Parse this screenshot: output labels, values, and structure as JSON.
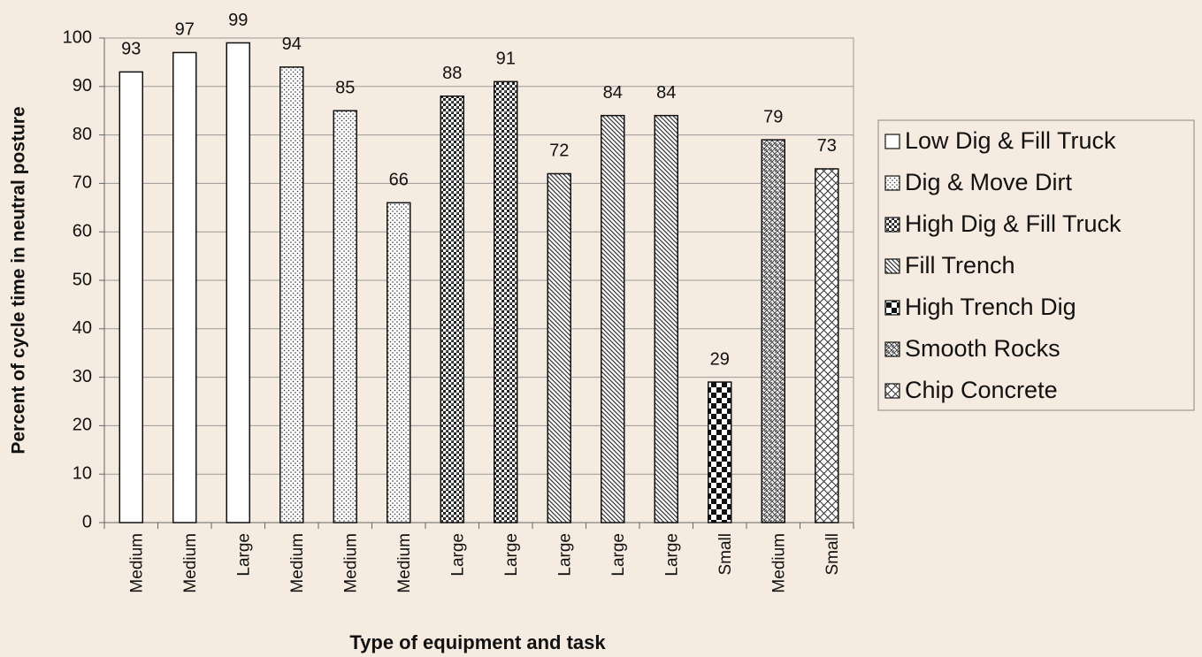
{
  "chart_data": {
    "type": "bar",
    "y_label": "Percent of cycle time in neutral posture",
    "x_label": "Type of equipment and task",
    "categories": [
      "Medium",
      "Medium",
      "Large",
      "Medium",
      "Medium",
      "Medium",
      "Large",
      "Large",
      "Large",
      "Large",
      "Large",
      "Small",
      "Medium",
      "Small"
    ],
    "series": [
      {
        "name": "Low Dig & Fill Truck",
        "pattern": "none",
        "values": [
          93,
          97,
          99,
          null,
          null,
          null,
          null,
          null,
          null,
          null,
          null,
          null,
          null,
          null
        ]
      },
      {
        "name": "Dig & Move Dirt",
        "pattern": "dots",
        "values": [
          null,
          null,
          null,
          94,
          85,
          66,
          null,
          null,
          null,
          null,
          null,
          null,
          null,
          null
        ]
      },
      {
        "name": "High Dig & Fill Truck",
        "pattern": "checks",
        "values": [
          null,
          null,
          null,
          null,
          null,
          null,
          88,
          91,
          null,
          null,
          null,
          null,
          null,
          null
        ]
      },
      {
        "name": "Fill Trench",
        "pattern": "diagonal",
        "values": [
          null,
          null,
          null,
          null,
          null,
          null,
          null,
          null,
          72,
          84,
          84,
          null,
          null,
          null
        ]
      },
      {
        "name": "High Trench Dig",
        "pattern": "checker",
        "values": [
          null,
          null,
          null,
          null,
          null,
          null,
          null,
          null,
          null,
          null,
          null,
          29,
          null,
          null
        ]
      },
      {
        "name": "Smooth Rocks",
        "pattern": "weave",
        "values": [
          null,
          null,
          null,
          null,
          null,
          null,
          null,
          null,
          null,
          null,
          null,
          null,
          79,
          null
        ]
      },
      {
        "name": "Chip Concrete",
        "pattern": "crosshatch",
        "values": [
          null,
          null,
          null,
          null,
          null,
          null,
          null,
          null,
          null,
          null,
          null,
          null,
          null,
          73
        ]
      }
    ],
    "ylim": [
      0,
      100
    ],
    "yticks": [
      0,
      10,
      20,
      30,
      40,
      50,
      60,
      70,
      80,
      90,
      100
    ],
    "grid": true,
    "legend": "right"
  }
}
